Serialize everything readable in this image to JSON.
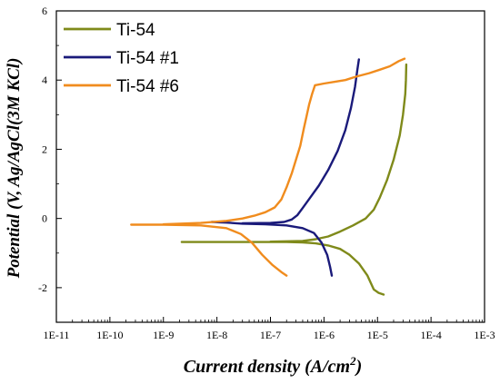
{
  "chart_data": {
    "type": "line",
    "title": "",
    "xlabel": "Current density (A/cm",
    "xlabel_sup": "2",
    "xlabel_close": ")",
    "ylabel": "Potential (V, Ag/AgCl(3M KCl)",
    "x_scale": "log",
    "xlim": [
      1e-11,
      0.001
    ],
    "ylim": [
      -3,
      6
    ],
    "x_ticks": [
      {
        "value": 1e-11,
        "label": "1E-11"
      },
      {
        "value": 1e-10,
        "label": "1E-10"
      },
      {
        "value": 1e-09,
        "label": "1E-9"
      },
      {
        "value": 1e-08,
        "label": "1E-8"
      },
      {
        "value": 1e-07,
        "label": "1E-7"
      },
      {
        "value": 1e-06,
        "label": "1E-6"
      },
      {
        "value": 1e-05,
        "label": "1E-5"
      },
      {
        "value": 0.0001,
        "label": "1E-4"
      },
      {
        "value": 0.001,
        "label": "1E-3"
      }
    ],
    "y_ticks": [
      {
        "value": -2,
        "label": "-2"
      },
      {
        "value": 0,
        "label": "0"
      },
      {
        "value": 2,
        "label": "2"
      },
      {
        "value": 4,
        "label": "4"
      },
      {
        "value": 6,
        "label": "6"
      }
    ],
    "grid": false,
    "legend_position": "top-left",
    "series": [
      {
        "name": "Ti-54",
        "color": "#7f8a1a",
        "points": [
          [
            2.2e-09,
            -0.68
          ],
          [
            1e-08,
            -0.68
          ],
          [
            5e-08,
            -0.68
          ],
          [
            1e-07,
            -0.68
          ],
          [
            2e-07,
            -0.68
          ],
          [
            4e-07,
            -0.69
          ],
          [
            7e-07,
            -0.72
          ],
          [
            1.2e-06,
            -0.78
          ],
          [
            2e-06,
            -0.88
          ],
          [
            3e-06,
            -1.05
          ],
          [
            4.5e-06,
            -1.3
          ],
          [
            6.5e-06,
            -1.65
          ],
          [
            8.5e-06,
            -2.05
          ],
          [
            1.05e-05,
            -2.15
          ],
          [
            1.3e-05,
            -2.2
          ],
          [
            1e-07,
            -0.67
          ],
          [
            4e-07,
            -0.65
          ],
          [
            7e-07,
            -0.6
          ],
          [
            1.2e-06,
            -0.52
          ],
          [
            2e-06,
            -0.38
          ],
          [
            3.5e-06,
            -0.2
          ],
          [
            6e-06,
            0.0
          ],
          [
            8.5e-06,
            0.25
          ],
          [
            1.1e-05,
            0.6
          ],
          [
            1.5e-05,
            1.1
          ],
          [
            2e-05,
            1.7
          ],
          [
            2.6e-05,
            2.4
          ],
          [
            3e-05,
            3.0
          ],
          [
            3.3e-05,
            3.6
          ],
          [
            3.4e-05,
            4.0
          ],
          [
            3.45e-05,
            4.45
          ]
        ]
      },
      {
        "name": "Ti-54 #1",
        "color": "#1a1a7a",
        "points": [
          [
            8e-09,
            -0.1
          ],
          [
            1.5e-08,
            -0.12
          ],
          [
            3e-08,
            -0.15
          ],
          [
            8e-08,
            -0.17
          ],
          [
            2e-07,
            -0.2
          ],
          [
            4e-07,
            -0.28
          ],
          [
            6.5e-07,
            -0.42
          ],
          [
            9e-07,
            -0.7
          ],
          [
            1.15e-06,
            -1.05
          ],
          [
            1.3e-06,
            -1.4
          ],
          [
            1.4e-06,
            -1.65
          ],
          [
            3e-08,
            -0.14
          ],
          [
            1e-07,
            -0.13
          ],
          [
            1.8e-07,
            -0.1
          ],
          [
            2.5e-07,
            -0.03
          ],
          [
            3.2e-07,
            0.1
          ],
          [
            4e-07,
            0.3
          ],
          [
            5.5e-07,
            0.6
          ],
          [
            8e-07,
            0.95
          ],
          [
            1.2e-06,
            1.4
          ],
          [
            1.8e-06,
            1.95
          ],
          [
            2.5e-06,
            2.55
          ],
          [
            3.2e-06,
            3.2
          ],
          [
            3.8e-06,
            3.8
          ],
          [
            4.2e-06,
            4.3
          ],
          [
            4.5e-06,
            4.6
          ]
        ]
      },
      {
        "name": "Ti-54 #6",
        "color": "#f08c1e",
        "points": [
          [
            2.5e-10,
            -0.18
          ],
          [
            1e-09,
            -0.18
          ],
          [
            5e-09,
            -0.2
          ],
          [
            1.5e-08,
            -0.28
          ],
          [
            2.8e-08,
            -0.45
          ],
          [
            4.5e-08,
            -0.7
          ],
          [
            7e-08,
            -1.05
          ],
          [
            1.1e-07,
            -1.35
          ],
          [
            1.6e-07,
            -1.55
          ],
          [
            2e-07,
            -1.65
          ],
          [
            1e-09,
            -0.17
          ],
          [
            5e-09,
            -0.13
          ],
          [
            1.5e-08,
            -0.07
          ],
          [
            3e-08,
            0.0
          ],
          [
            5e-08,
            0.08
          ],
          [
            8e-08,
            0.18
          ],
          [
            1.2e-07,
            0.32
          ],
          [
            1.6e-07,
            0.55
          ],
          [
            2e-07,
            0.9
          ],
          [
            2.5e-07,
            1.3
          ],
          [
            3e-07,
            1.7
          ],
          [
            3.6e-07,
            2.1
          ],
          [
            4.2e-07,
            2.6
          ],
          [
            4.8e-07,
            3.0
          ],
          [
            5.3e-07,
            3.3
          ],
          [
            6e-07,
            3.6
          ],
          [
            6.8e-07,
            3.85
          ],
          [
            1e-06,
            3.9
          ],
          [
            1.6e-06,
            3.95
          ],
          [
            2.5e-06,
            4.0
          ],
          [
            4e-06,
            4.1
          ],
          [
            7e-06,
            4.2
          ],
          [
            1.1e-05,
            4.3
          ],
          [
            1.7e-05,
            4.4
          ],
          [
            2.5e-05,
            4.55
          ],
          [
            3.2e-05,
            4.62
          ]
        ]
      }
    ]
  }
}
